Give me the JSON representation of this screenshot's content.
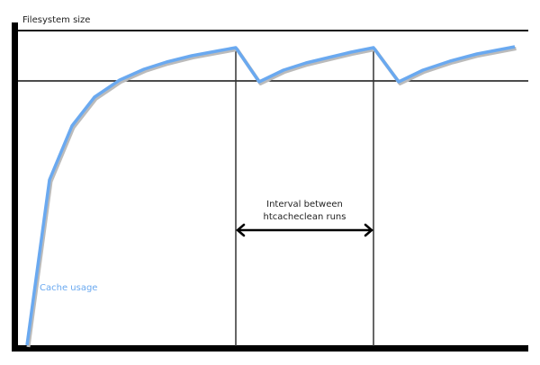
{
  "labels": {
    "y_axis": "Filesystem size",
    "series": "Cache usage",
    "interval_line1": "Interval between",
    "interval_line2": "htcacheclean runs"
  },
  "colors": {
    "curve": "#6aa9f0",
    "axes": "#000000"
  }
}
